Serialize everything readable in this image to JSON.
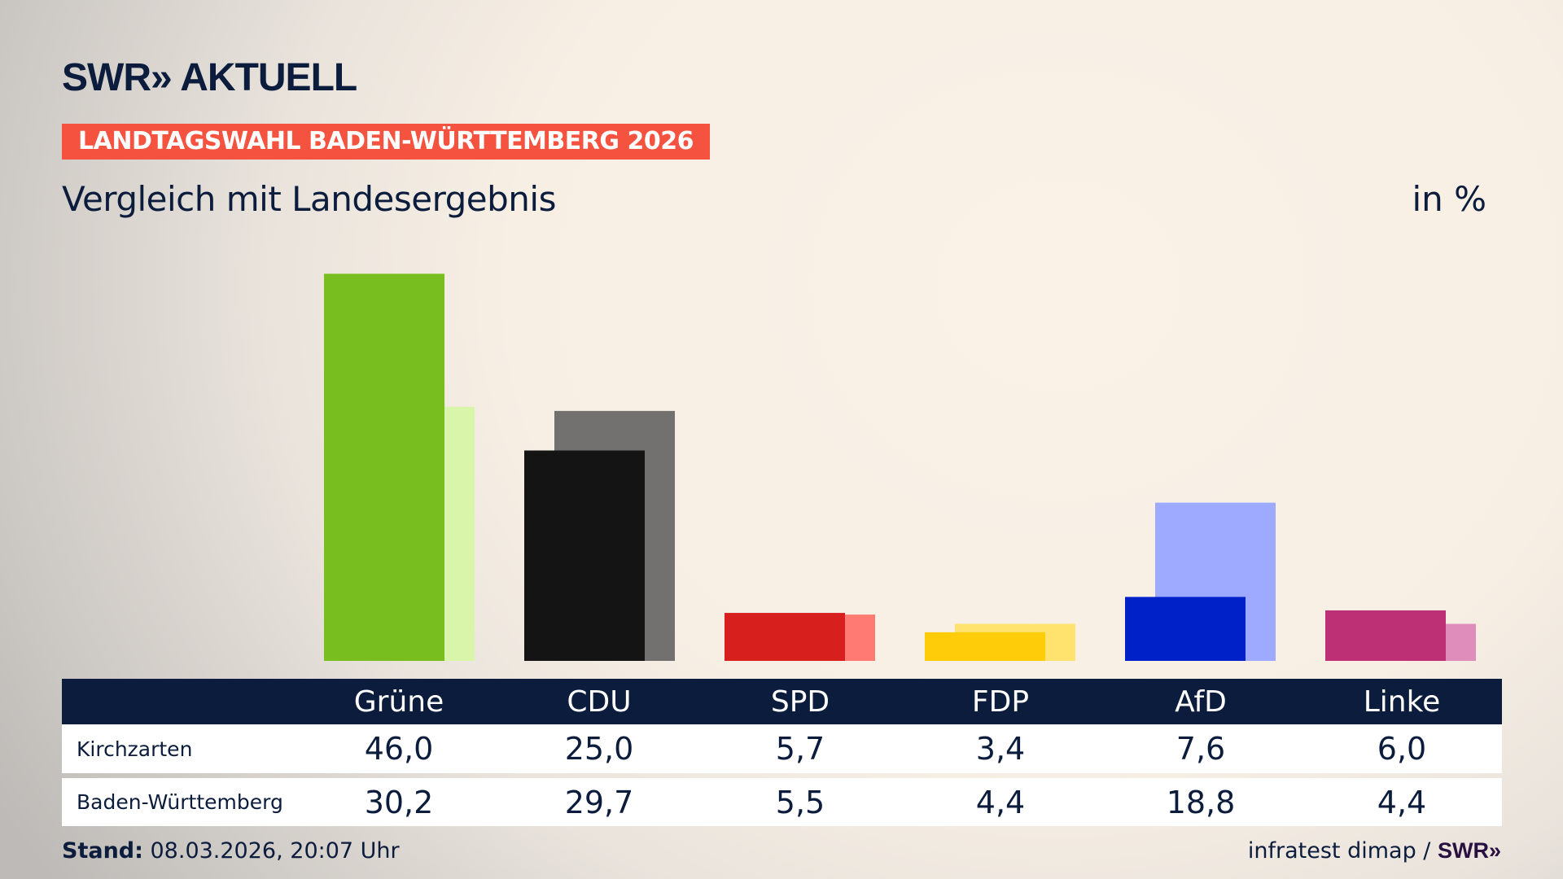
{
  "brand": {
    "logo": "SWR» AKTUELL"
  },
  "banner": "LANDTAGSWAHL BADEN-WÜRTTEMBERG 2026",
  "subtitle": "Vergleich mit Landesergebnis",
  "unit": "in %",
  "chart_data": {
    "type": "bar",
    "title": "Vergleich mit Landesergebnis",
    "ylabel": "in %",
    "categories": [
      "Grüne",
      "CDU",
      "SPD",
      "FDP",
      "AfD",
      "Linke"
    ],
    "series": [
      {
        "name": "Kirchzarten",
        "values": [
          46.0,
          25.0,
          5.7,
          3.4,
          7.6,
          6.0
        ],
        "colors": [
          "#78be1e",
          "#141414",
          "#d71f1d",
          "#ffcc0a",
          "#0020c8",
          "#be3075"
        ]
      },
      {
        "name": "Baden-Württemberg",
        "values": [
          30.2,
          29.7,
          5.5,
          4.4,
          18.8,
          4.4
        ],
        "colors": [
          "#d8f5aa",
          "#737170",
          "#ff7a73",
          "#ffe36e",
          "#9eaaff",
          "#df8ebb"
        ]
      }
    ],
    "grid": false
  },
  "table": {
    "headers": [
      "Grüne",
      "CDU",
      "SPD",
      "FDP",
      "AfD",
      "Linke"
    ],
    "rows": [
      {
        "label": "Kirchzarten",
        "values": [
          "46,0",
          "25,0",
          "5,7",
          "3,4",
          "7,6",
          "6,0"
        ]
      },
      {
        "label": "Baden-Württemberg",
        "values": [
          "30,2",
          "29,7",
          "5,5",
          "4,4",
          "18,8",
          "4,4"
        ]
      }
    ]
  },
  "footer": {
    "stand_label": "Stand:",
    "stand_value": " 08.03.2026, 20:07 Uhr",
    "source": "infratest dimap / ",
    "source_logo": "SWR»"
  }
}
